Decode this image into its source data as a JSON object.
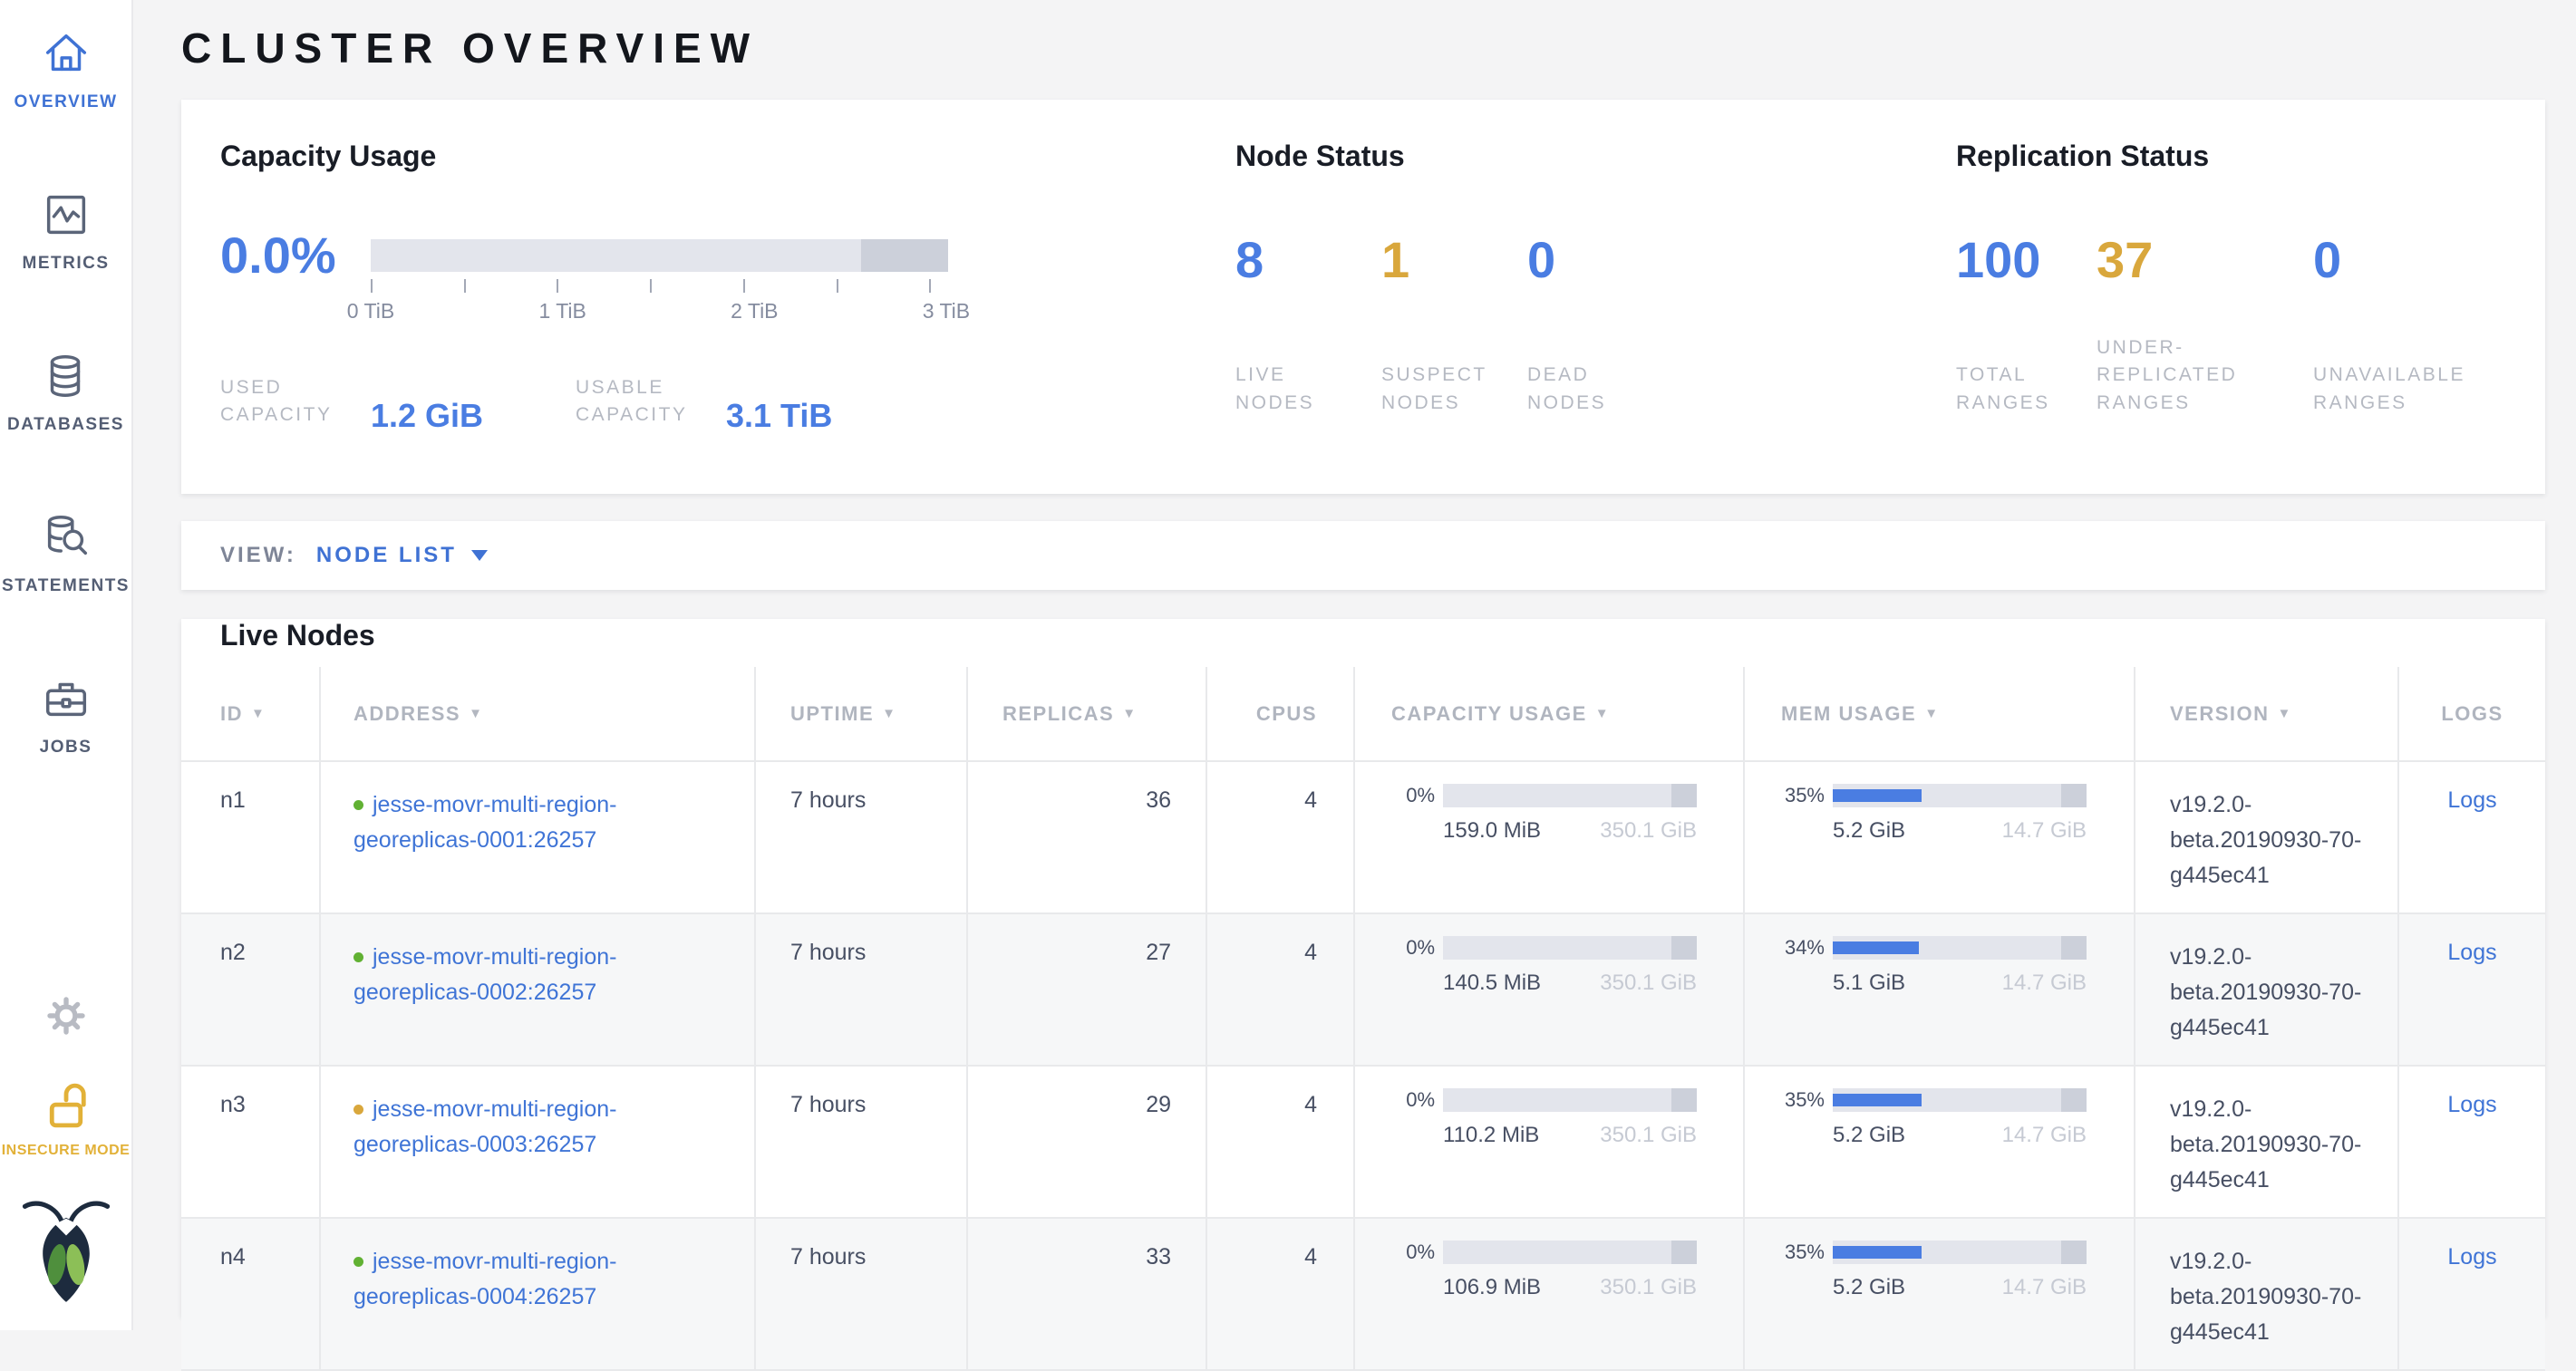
{
  "page_title": "CLUSTER OVERVIEW",
  "colors": {
    "accent_blue": "#4a7de2",
    "warning_yellow": "#d9a73c",
    "healthy_green": "#61b133",
    "insecure_yellow": "#e2b138"
  },
  "sidebar": {
    "items": [
      {
        "label": "OVERVIEW",
        "icon": "home-icon",
        "active": true
      },
      {
        "label": "METRICS",
        "icon": "metrics-icon",
        "active": false
      },
      {
        "label": "DATABASES",
        "icon": "database-icon",
        "active": false
      },
      {
        "label": "STATEMENTS",
        "icon": "statements-icon",
        "active": false
      },
      {
        "label": "JOBS",
        "icon": "briefcase-icon",
        "active": false
      }
    ],
    "footer": {
      "insecure_label": "INSECURE MODE"
    }
  },
  "summary": {
    "capacity": {
      "title": "Capacity Usage",
      "percent": "0.0%",
      "tick_labels": [
        "0 TiB",
        "1 TiB",
        "2 TiB",
        "3 TiB"
      ],
      "stats": [
        {
          "label": "USED CAPACITY",
          "value": "1.2 GiB"
        },
        {
          "label": "USABLE CAPACITY",
          "value": "3.1 TiB"
        }
      ]
    },
    "nodes": {
      "title": "Node Status",
      "stats": [
        {
          "value": "8",
          "label": "LIVE NODES",
          "color": "#4a7de2"
        },
        {
          "value": "1",
          "label": "SUSPECT NODES",
          "color": "#d9a73c"
        },
        {
          "value": "0",
          "label": "DEAD NODES",
          "color": "#4a7de2"
        }
      ]
    },
    "replication": {
      "title": "Replication Status",
      "stats": [
        {
          "value": "100",
          "label": "TOTAL RANGES",
          "color": "#4a7de2"
        },
        {
          "value": "37",
          "label": "UNDER-REPLICATED RANGES",
          "color": "#d9a73c"
        },
        {
          "value": "0",
          "label": "UNAVAILABLE RANGES",
          "color": "#4a7de2"
        }
      ]
    }
  },
  "view_bar": {
    "label": "VIEW:",
    "selected": "NODE LIST"
  },
  "table": {
    "title": "Live Nodes",
    "columns": [
      {
        "label": "ID",
        "sortable": true
      },
      {
        "label": "ADDRESS",
        "sortable": true
      },
      {
        "label": "UPTIME",
        "sortable": true
      },
      {
        "label": "REPLICAS",
        "sortable": true
      },
      {
        "label": "CPUS",
        "sortable": false
      },
      {
        "label": "CAPACITY USAGE",
        "sortable": true
      },
      {
        "label": "MEM USAGE",
        "sortable": true
      },
      {
        "label": "VERSION",
        "sortable": true
      },
      {
        "label": "LOGS",
        "sortable": false
      }
    ],
    "rows": [
      {
        "id": "n1",
        "status": "healthy",
        "address": "jesse-movr-multi-region-georeplicas-0001:26257",
        "uptime": "7 hours",
        "replicas": "36",
        "cpus": "4",
        "capacity": {
          "percent_label": "0%",
          "percent": 0,
          "used": "159.0 MiB",
          "total": "350.1 GiB"
        },
        "mem": {
          "percent_label": "35%",
          "percent": 35,
          "used": "5.2 GiB",
          "total": "14.7 GiB"
        },
        "version": "v19.2.0-beta.20190930-70-g445ec41",
        "logs_label": "Logs"
      },
      {
        "id": "n2",
        "status": "healthy",
        "address": "jesse-movr-multi-region-georeplicas-0002:26257",
        "uptime": "7 hours",
        "replicas": "27",
        "cpus": "4",
        "capacity": {
          "percent_label": "0%",
          "percent": 0,
          "used": "140.5 MiB",
          "total": "350.1 GiB"
        },
        "mem": {
          "percent_label": "34%",
          "percent": 34,
          "used": "5.1 GiB",
          "total": "14.7 GiB"
        },
        "version": "v19.2.0-beta.20190930-70-g445ec41",
        "logs_label": "Logs"
      },
      {
        "id": "n3",
        "status": "suspect",
        "address": "jesse-movr-multi-region-georeplicas-0003:26257",
        "uptime": "7 hours",
        "replicas": "29",
        "cpus": "4",
        "capacity": {
          "percent_label": "0%",
          "percent": 0,
          "used": "110.2 MiB",
          "total": "350.1 GiB"
        },
        "mem": {
          "percent_label": "35%",
          "percent": 35,
          "used": "5.2 GiB",
          "total": "14.7 GiB"
        },
        "version": "v19.2.0-beta.20190930-70-g445ec41",
        "logs_label": "Logs"
      },
      {
        "id": "n4",
        "status": "healthy",
        "address": "jesse-movr-multi-region-georeplicas-0004:26257",
        "uptime": "7 hours",
        "replicas": "33",
        "cpus": "4",
        "capacity": {
          "percent_label": "0%",
          "percent": 0,
          "used": "106.9 MiB",
          "total": "350.1 GiB"
        },
        "mem": {
          "percent_label": "35%",
          "percent": 35,
          "used": "5.2 GiB",
          "total": "14.7 GiB"
        },
        "version": "v19.2.0-beta.20190930-70-g445ec41",
        "logs_label": "Logs"
      }
    ]
  }
}
